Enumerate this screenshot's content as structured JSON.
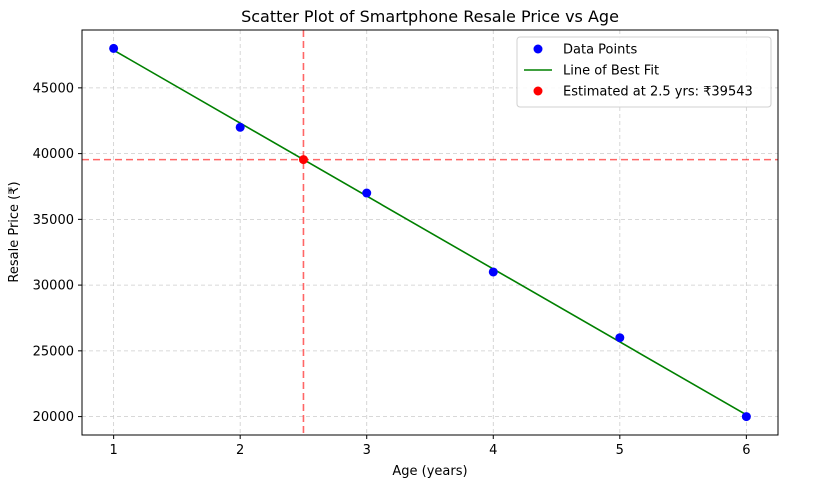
{
  "chart_data": {
    "type": "scatter",
    "title": "Scatter Plot of Smartphone Resale Price vs Age",
    "xlabel": "Age (years)",
    "ylabel": "Resale Price (₹)",
    "xlim": [
      0.75,
      6.25
    ],
    "ylim": [
      18600,
      49400
    ],
    "xticks": [
      1,
      2,
      3,
      4,
      5,
      6
    ],
    "yticks": [
      20000,
      25000,
      30000,
      35000,
      40000,
      45000
    ],
    "grid": true,
    "legend_position": "top-right",
    "series": [
      {
        "name": "Data Points",
        "kind": "scatter",
        "color": "#0000ff",
        "x": [
          1,
          2,
          3,
          4,
          5,
          6
        ],
        "y": [
          48000,
          42000,
          37000,
          31000,
          26000,
          20000
        ]
      },
      {
        "name": "Line of Best Fit",
        "kind": "line",
        "color": "#008000",
        "x": [
          1,
          6
        ],
        "y": [
          47866,
          20133
        ]
      },
      {
        "name": "Estimated at 2.5 yrs: ₹39543",
        "kind": "point",
        "color": "#ff0000",
        "x": [
          2.5
        ],
        "y": [
          39543
        ]
      }
    ],
    "reference_lines": {
      "color": "#ff0000",
      "vertical_x": 2.5,
      "horizontal_y": 39543
    }
  }
}
